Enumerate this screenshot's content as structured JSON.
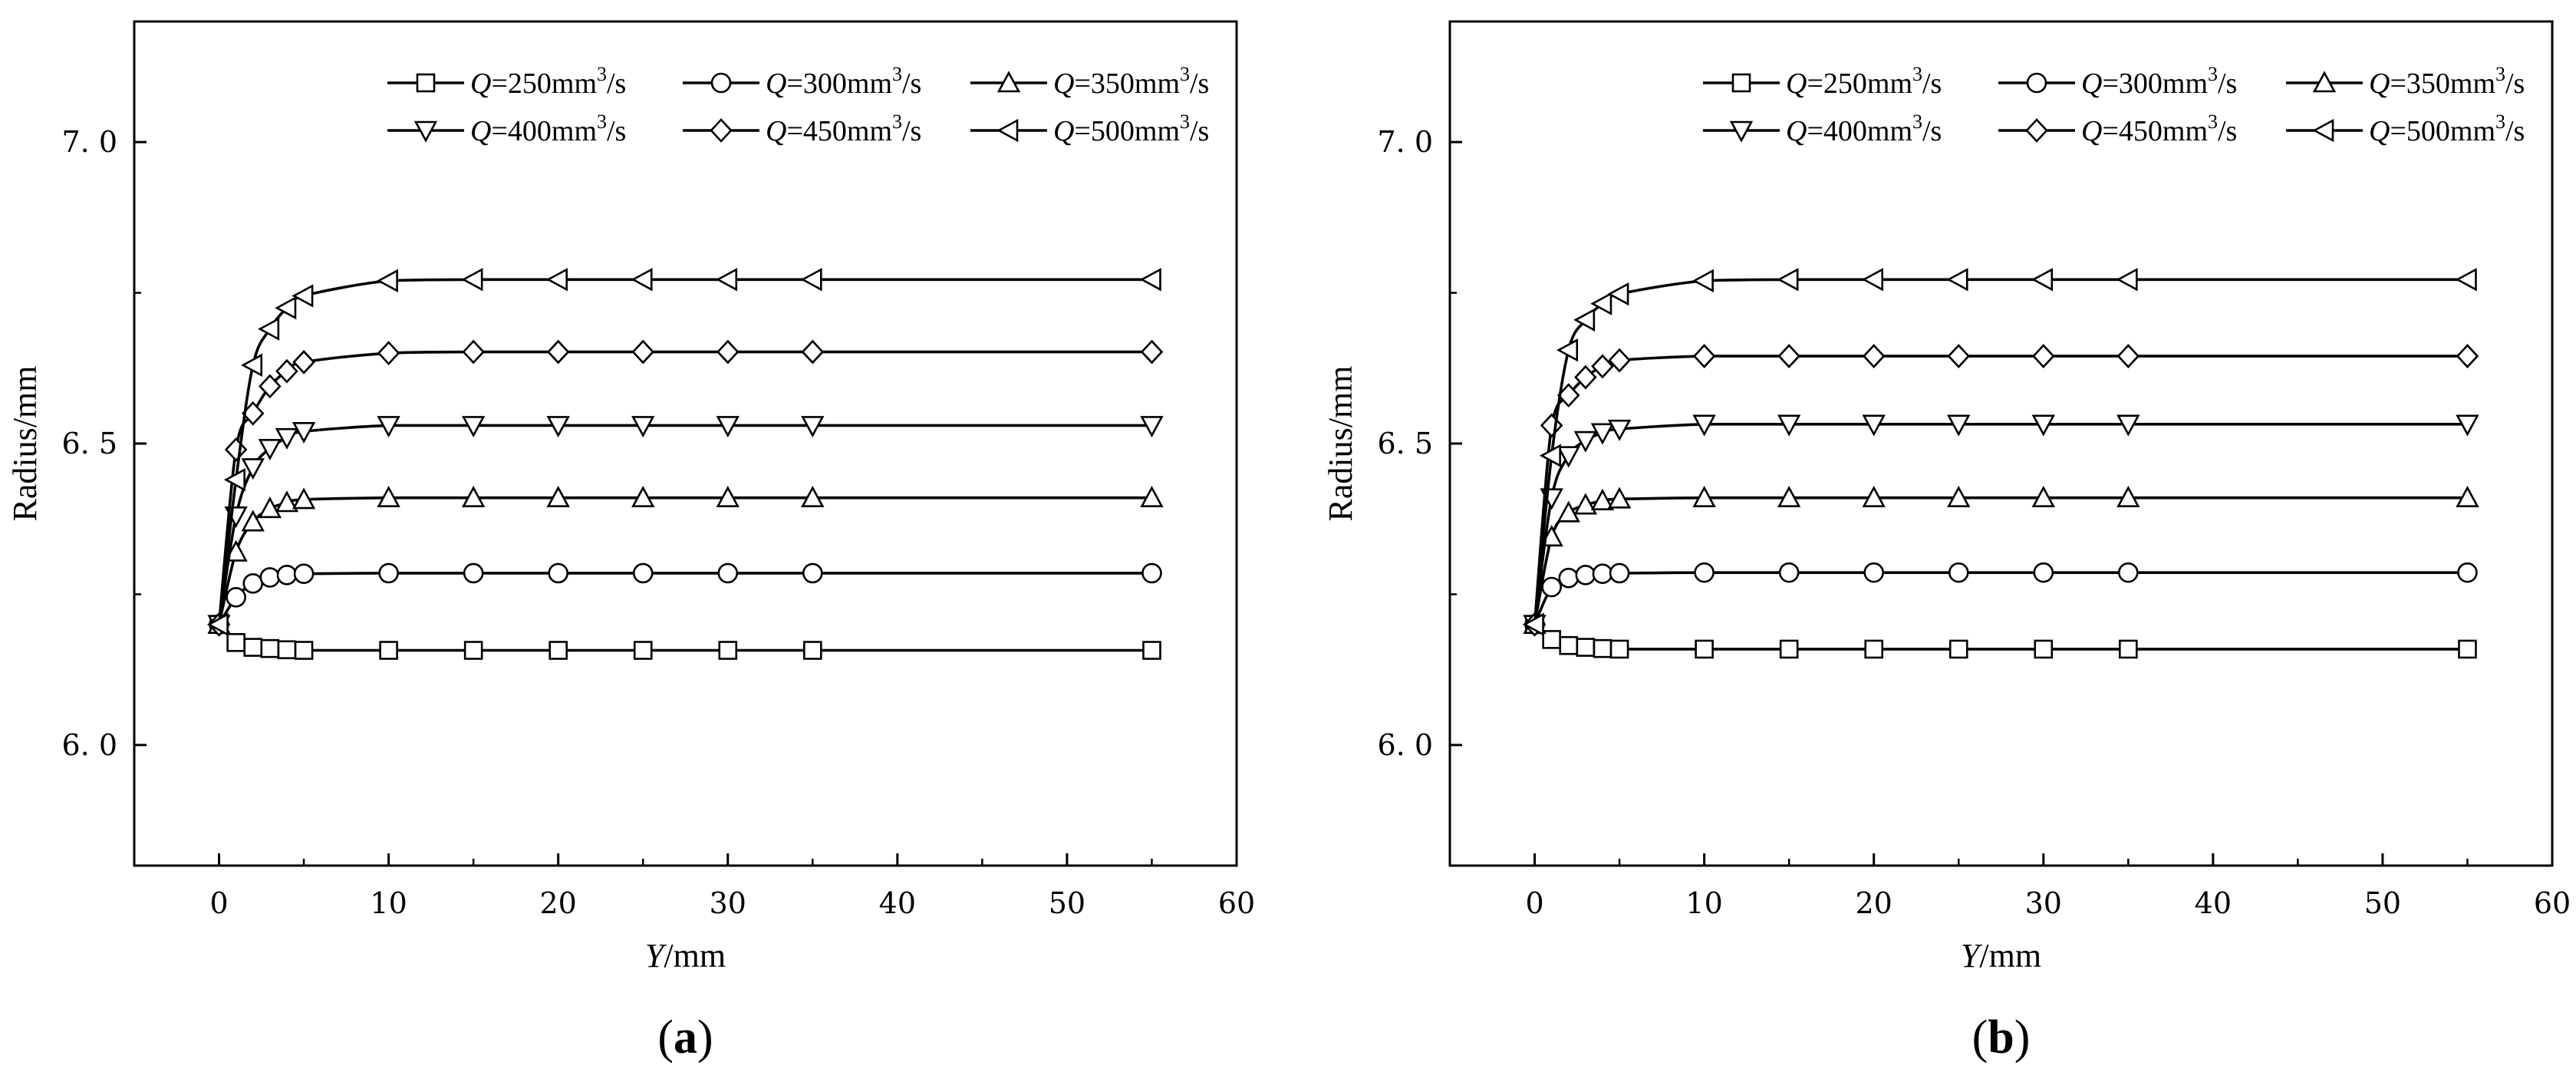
{
  "chart_data": [
    {
      "type": "line",
      "panel_label": {
        "open": "(",
        "letter": "a",
        "close": ")"
      },
      "xlabel": {
        "var": "Y",
        "unit": "/mm"
      },
      "ylabel": "Radius/mm",
      "xlim": [
        -5,
        60
      ],
      "ylim": [
        5.8,
        7.2
      ],
      "xticks": [
        0,
        10,
        20,
        30,
        40,
        50,
        60
      ],
      "yticks": [
        6.0,
        6.5,
        7.0
      ],
      "ytick_labels": [
        "6. 0",
        "6. 5",
        "7. 0"
      ],
      "grid": false,
      "legend_position": "top-right",
      "x": [
        0,
        1,
        2,
        3,
        4,
        5,
        10,
        15,
        20,
        25,
        30,
        35,
        55
      ],
      "series": [
        {
          "name": {
            "sym": "Q",
            "text": "=250mm",
            "sup": "3",
            "unit": "/s"
          },
          "marker": "square",
          "values": [
            6.2,
            6.17,
            6.162,
            6.16,
            6.158,
            6.157,
            6.157,
            6.157,
            6.157,
            6.157,
            6.157,
            6.157,
            6.157
          ]
        },
        {
          "name": {
            "sym": "Q",
            "text": "=300mm",
            "sup": "3",
            "unit": "/s"
          },
          "marker": "circle",
          "values": [
            6.2,
            6.245,
            6.268,
            6.278,
            6.282,
            6.284,
            6.285,
            6.285,
            6.285,
            6.285,
            6.285,
            6.285,
            6.285
          ]
        },
        {
          "name": {
            "sym": "Q",
            "text": "=350mm",
            "sup": "3",
            "unit": "/s"
          },
          "marker": "triangle-up",
          "values": [
            6.2,
            6.32,
            6.37,
            6.392,
            6.402,
            6.407,
            6.41,
            6.41,
            6.41,
            6.41,
            6.41,
            6.41,
            6.41
          ]
        },
        {
          "name": {
            "sym": "Q",
            "text": "=400mm",
            "sup": "3",
            "unit": "/s"
          },
          "marker": "triangle-down",
          "values": [
            6.2,
            6.38,
            6.46,
            6.492,
            6.51,
            6.52,
            6.53,
            6.53,
            6.53,
            6.53,
            6.53,
            6.53,
            6.53
          ]
        },
        {
          "name": {
            "sym": "Q",
            "text": "=450mm",
            "sup": "3",
            "unit": "/s"
          },
          "marker": "diamond",
          "values": [
            6.2,
            6.49,
            6.55,
            6.595,
            6.62,
            6.635,
            6.65,
            6.652,
            6.652,
            6.652,
            6.652,
            6.652,
            6.652
          ]
        },
        {
          "name": {
            "sym": "Q",
            "text": "=500mm",
            "sup": "3",
            "unit": "/s"
          },
          "marker": "triangle-left",
          "values": [
            6.2,
            6.44,
            6.63,
            6.69,
            6.725,
            6.745,
            6.77,
            6.772,
            6.772,
            6.772,
            6.772,
            6.772,
            6.772
          ]
        }
      ]
    },
    {
      "type": "line",
      "panel_label": {
        "open": "(",
        "letter": "b",
        "close": ")"
      },
      "xlabel": {
        "var": "Y",
        "unit": "/mm"
      },
      "ylabel": "Radius/mm",
      "xlim": [
        -5,
        60
      ],
      "ylim": [
        5.8,
        7.2
      ],
      "xticks": [
        0,
        10,
        20,
        30,
        40,
        50,
        60
      ],
      "yticks": [
        6.0,
        6.5,
        7.0
      ],
      "ytick_labels": [
        "6. 0",
        "6. 5",
        "7. 0"
      ],
      "grid": false,
      "legend_position": "top-right",
      "x": [
        0,
        1,
        2,
        3,
        4,
        5,
        10,
        15,
        20,
        25,
        30,
        35,
        55
      ],
      "series": [
        {
          "name": {
            "sym": "Q",
            "text": "=250mm",
            "sup": "3",
            "unit": "/s"
          },
          "marker": "square",
          "values": [
            6.2,
            6.175,
            6.165,
            6.162,
            6.16,
            6.159,
            6.159,
            6.159,
            6.159,
            6.159,
            6.159,
            6.159,
            6.159
          ]
        },
        {
          "name": {
            "sym": "Q",
            "text": "=300mm",
            "sup": "3",
            "unit": "/s"
          },
          "marker": "circle",
          "values": [
            6.2,
            6.262,
            6.277,
            6.282,
            6.284,
            6.285,
            6.286,
            6.286,
            6.286,
            6.286,
            6.286,
            6.286,
            6.286
          ]
        },
        {
          "name": {
            "sym": "Q",
            "text": "=350mm",
            "sup": "3",
            "unit": "/s"
          },
          "marker": "triangle-up",
          "values": [
            6.2,
            6.345,
            6.385,
            6.398,
            6.405,
            6.408,
            6.41,
            6.41,
            6.41,
            6.41,
            6.41,
            6.41,
            6.41
          ]
        },
        {
          "name": {
            "sym": "Q",
            "text": "=400mm",
            "sup": "3",
            "unit": "/s"
          },
          "marker": "triangle-down",
          "values": [
            6.2,
            6.41,
            6.48,
            6.505,
            6.518,
            6.524,
            6.532,
            6.532,
            6.532,
            6.532,
            6.532,
            6.532,
            6.532
          ]
        },
        {
          "name": {
            "sym": "Q",
            "text": "=450mm",
            "sup": "3",
            "unit": "/s"
          },
          "marker": "diamond",
          "values": [
            6.2,
            6.53,
            6.58,
            6.61,
            6.628,
            6.638,
            6.645,
            6.645,
            6.645,
            6.645,
            6.645,
            6.645,
            6.645
          ]
        },
        {
          "name": {
            "sym": "Q",
            "text": "=500mm",
            "sup": "3",
            "unit": "/s"
          },
          "marker": "triangle-left",
          "values": [
            6.2,
            6.48,
            6.655,
            6.705,
            6.732,
            6.748,
            6.77,
            6.772,
            6.772,
            6.772,
            6.772,
            6.772,
            6.772
          ]
        }
      ]
    }
  ]
}
